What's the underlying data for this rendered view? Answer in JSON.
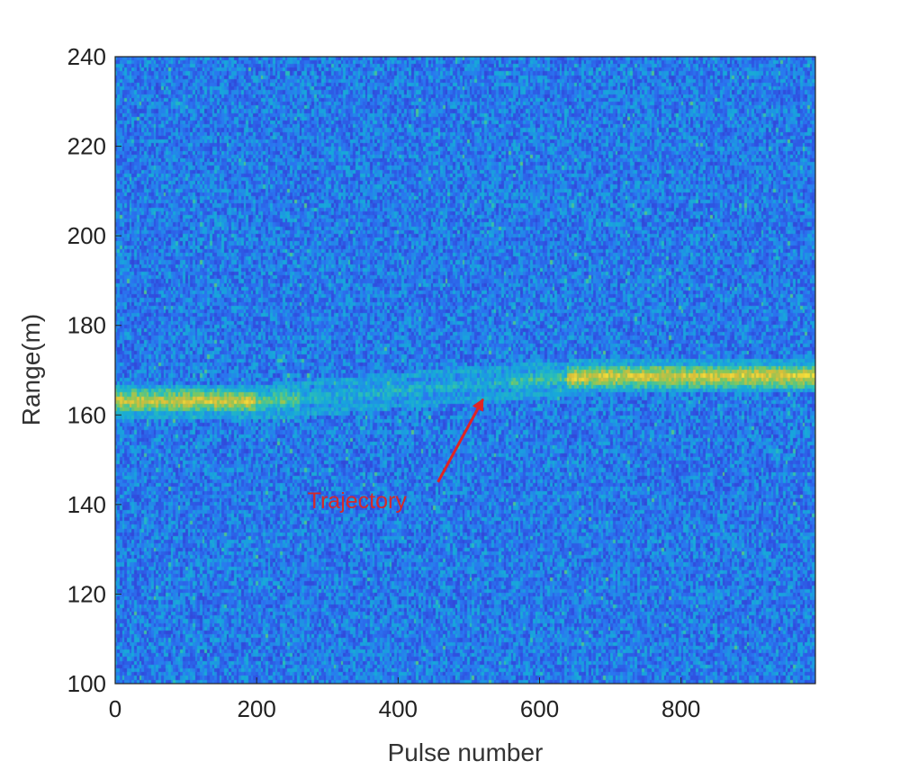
{
  "chart_data": {
    "type": "heatmap",
    "title": "",
    "xlabel": "Pulse number",
    "ylabel": "Range(m)",
    "xlim": [
      0,
      990
    ],
    "ylim": [
      100,
      240
    ],
    "x_ticks": [
      "0",
      "200",
      "400",
      "600",
      "800"
    ],
    "y_ticks": [
      "100",
      "120",
      "140",
      "160",
      "180",
      "200",
      "220",
      "240"
    ],
    "grid": false,
    "colormap": [
      "#3e26a8",
      "#2f4fe0",
      "#2a77f0",
      "#17a7db",
      "#2bc0b5",
      "#7cc860",
      "#d6bd3a",
      "#f9e23a"
    ],
    "trajectory": [
      {
        "pulse": 0,
        "range": 163
      },
      {
        "pulse": 220,
        "range": 163
      },
      {
        "pulse": 380,
        "range": 165
      },
      {
        "pulse": 540,
        "range": 167
      },
      {
        "pulse": 680,
        "range": 168.5
      },
      {
        "pulse": 990,
        "range": 168.5
      }
    ],
    "annotations": [
      {
        "text": "Trajectory",
        "x": 380,
        "y": 141,
        "color": "#d42a2a",
        "arrow_to": {
          "x": 520,
          "y": 163.5
        }
      }
    ]
  }
}
